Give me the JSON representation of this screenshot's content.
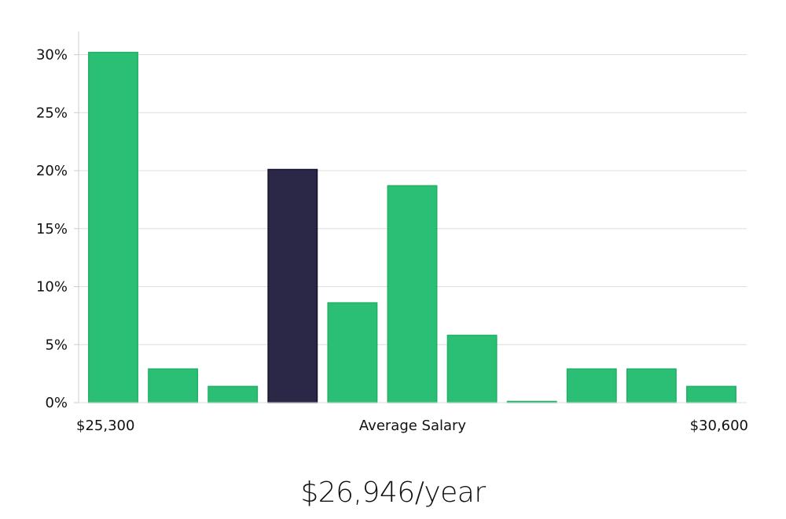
{
  "chart_data": {
    "type": "bar",
    "title": "",
    "xlabel": "Average Salary",
    "ylabel": "",
    "x_range_labels": {
      "min": "$25,300",
      "max": "$30,600"
    },
    "categories": [
      "1",
      "2",
      "3",
      "4",
      "5",
      "6",
      "7",
      "8",
      "9",
      "10",
      "11"
    ],
    "values": [
      30.2,
      2.9,
      1.4,
      20.1,
      8.6,
      18.7,
      5.8,
      0.1,
      2.9,
      2.9,
      1.4
    ],
    "highlight_index": 3,
    "ylim": [
      0,
      32
    ],
    "yticks": [
      0,
      5,
      10,
      15,
      20,
      25,
      30
    ],
    "ytick_labels": [
      "0%",
      "5%",
      "10%",
      "15%",
      "20%",
      "25%",
      "30%"
    ],
    "grid": true,
    "colors": {
      "bar": "#2bbf75",
      "bar_edge": "#22b067",
      "highlight": "#2a2747",
      "highlight_edge": "#14122e",
      "grid": "#dddddd",
      "axis": "#cccccc"
    }
  },
  "summary": {
    "salary_text": "$26,946/year"
  }
}
